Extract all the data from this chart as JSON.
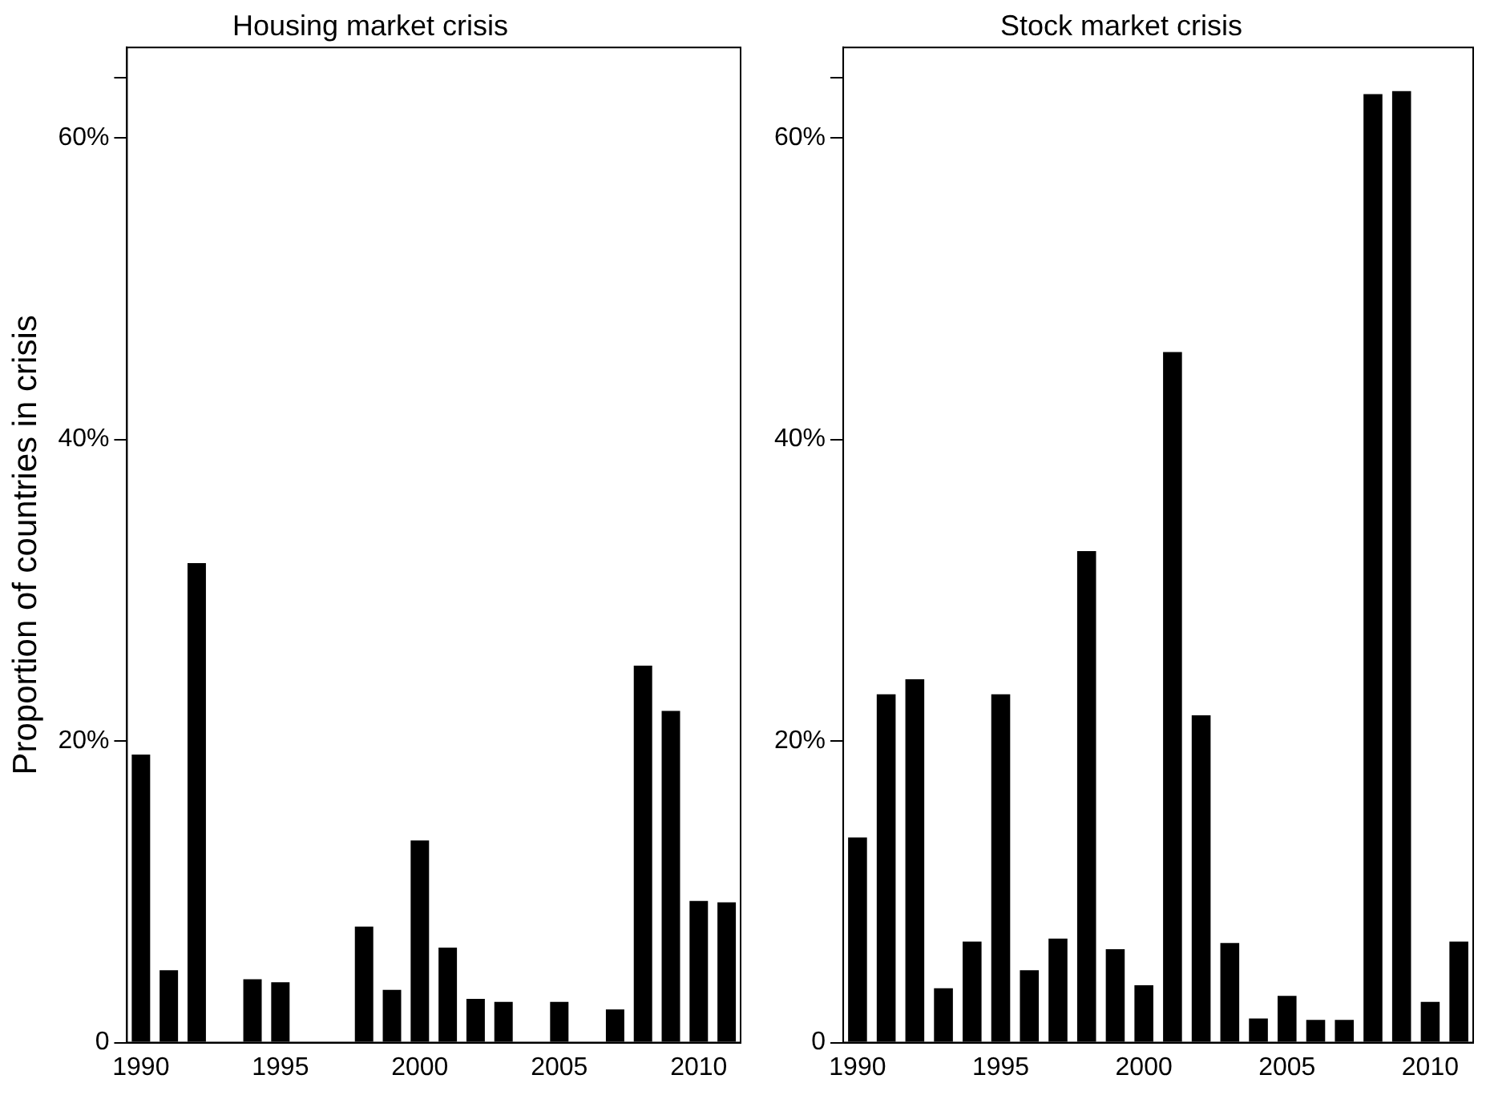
{
  "chart_data": [
    {
      "type": "bar",
      "title": "Housing market crisis",
      "ylabel": "Proportion of countries in crisis",
      "categories": [
        "1990",
        null,
        null,
        null,
        null,
        "1995",
        null,
        null,
        null,
        null,
        "2000",
        null,
        null,
        null,
        null,
        "2005",
        null,
        null,
        null,
        null,
        "2010",
        null
      ],
      "color": "#000000",
      "values": [
        19.1,
        4.8,
        31.8,
        0,
        4.2,
        4.0,
        0,
        0,
        7.7,
        3.5,
        13.4,
        6.3,
        2.9,
        2.7,
        0,
        2.7,
        0,
        2.2,
        25.0,
        22.0,
        9.4,
        9.3
      ],
      "ylim": [
        0,
        66
      ],
      "yticks": [
        0,
        {
          "value": 20,
          "label": "20%"
        },
        {
          "value": 40,
          "label": "40%"
        },
        {
          "value": 60,
          "label": "60%"
        },
        {
          "value": 64,
          "label": null
        }
      ],
      "grid": false,
      "legend": false
    },
    {
      "type": "bar",
      "title": "Stock market crisis",
      "categories": [
        "1990",
        null,
        null,
        null,
        null,
        "1995",
        null,
        null,
        null,
        null,
        "2000",
        null,
        null,
        null,
        null,
        "2005",
        null,
        null,
        null,
        null,
        "2010",
        null
      ],
      "color": "#000000",
      "values": [
        13.6,
        23.1,
        24.1,
        3.6,
        6.7,
        23.1,
        4.8,
        6.9,
        32.6,
        6.2,
        3.8,
        45.8,
        21.7,
        6.6,
        1.6,
        3.1,
        1.5,
        1.5,
        62.9,
        63.1,
        2.7,
        6.7
      ],
      "ylim": [
        0,
        66
      ],
      "yticks": [
        0,
        {
          "value": 20,
          "label": "20%"
        },
        {
          "value": 40,
          "label": "40%"
        },
        {
          "value": 60,
          "label": "60%"
        },
        {
          "value": 64,
          "label": null
        }
      ],
      "grid": false,
      "legend": false
    }
  ]
}
